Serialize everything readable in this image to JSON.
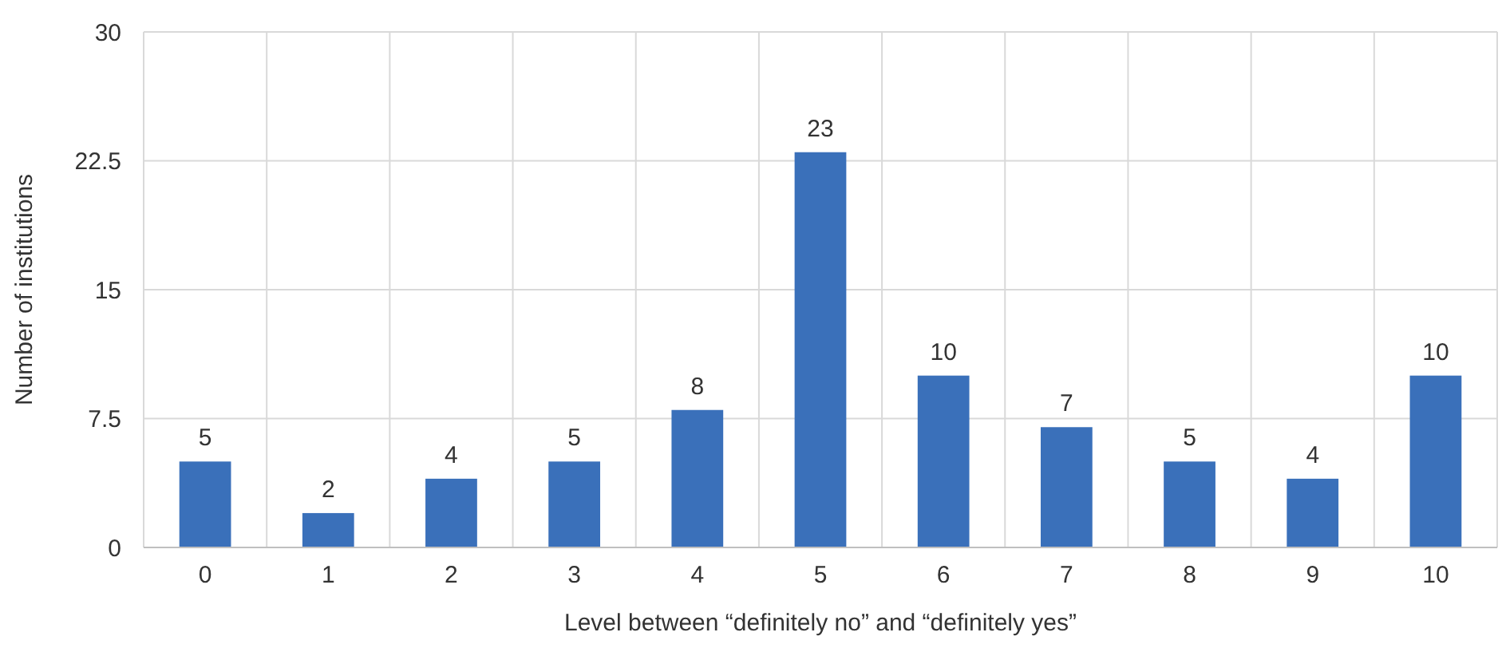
{
  "chart_data": {
    "type": "bar",
    "xlabel": "Level between “definitely no” and “definitely yes”",
    "ylabel": "Number of institutions",
    "categories": [
      "0",
      "1",
      "2",
      "3",
      "4",
      "5",
      "6",
      "7",
      "8",
      "9",
      "10"
    ],
    "values": [
      5,
      2,
      4,
      5,
      8,
      23,
      10,
      7,
      5,
      4,
      10
    ],
    "color": "#3a70ba",
    "ylim": [
      0,
      30
    ],
    "yticks": [
      0,
      7.5,
      15,
      22.5,
      30
    ],
    "grid": true,
    "data_labels": true
  }
}
